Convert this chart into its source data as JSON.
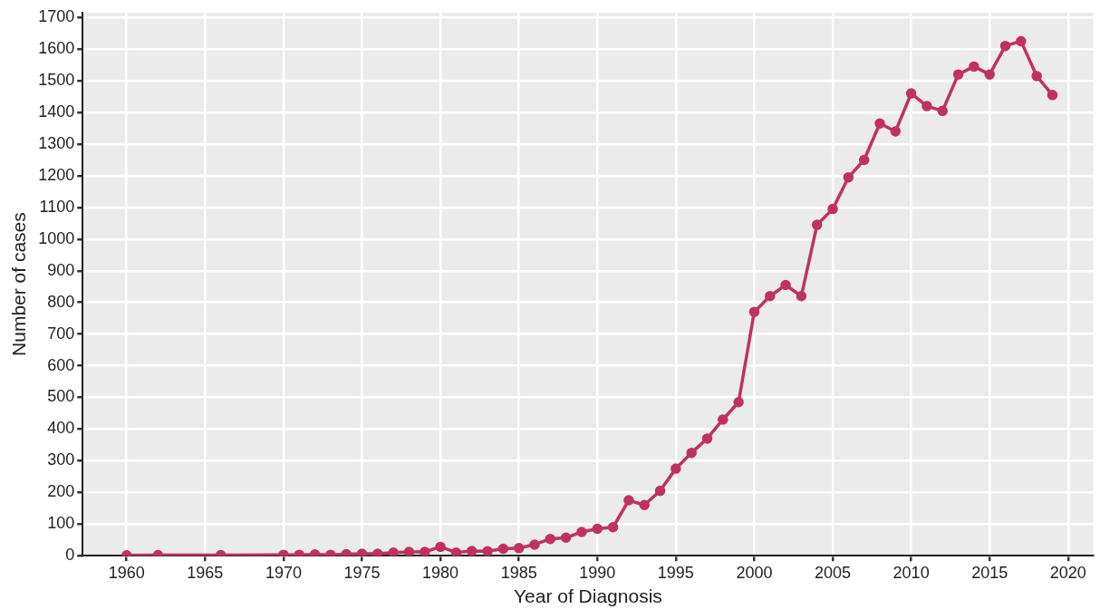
{
  "chart_data": {
    "type": "line",
    "xlabel": "Year of Diagnosis",
    "ylabel": "Number of cases",
    "x": [
      1960,
      1962,
      1966,
      1970,
      1971,
      1972,
      1973,
      1974,
      1975,
      1976,
      1977,
      1978,
      1979,
      1980,
      1981,
      1982,
      1983,
      1984,
      1985,
      1986,
      1987,
      1988,
      1989,
      1990,
      1991,
      1992,
      1993,
      1994,
      1995,
      1996,
      1997,
      1998,
      1999,
      2000,
      2001,
      2002,
      2003,
      2004,
      2005,
      2006,
      2007,
      2008,
      2009,
      2010,
      2011,
      2012,
      2013,
      2014,
      2015,
      2016,
      2017,
      2018,
      2019
    ],
    "series": [
      {
        "color": "#c0325e",
        "values": [
          1,
          2,
          2,
          3,
          3,
          4,
          3,
          5,
          6,
          6,
          10,
          12,
          12,
          28,
          10,
          15,
          14,
          22,
          24,
          35,
          53,
          57,
          75,
          85,
          90,
          175,
          160,
          205,
          275,
          325,
          370,
          430,
          485,
          770,
          820,
          855,
          820,
          1045,
          1095,
          1195,
          1250,
          1365,
          1340,
          1460,
          1420,
          1405,
          1520,
          1545,
          1520,
          1610,
          1625,
          1515,
          1455
        ]
      }
    ],
    "xlim": [
      1957.2,
      2021.6
    ],
    "xticks": [
      1960,
      1965,
      1970,
      1975,
      1980,
      1985,
      1990,
      1995,
      2000,
      2005,
      2010,
      2015,
      2020
    ],
    "ylim": [
      0,
      1715
    ],
    "yticks": [
      0,
      100,
      200,
      300,
      400,
      500,
      600,
      700,
      800,
      900,
      1000,
      1100,
      1200,
      1300,
      1400,
      1500,
      1600,
      1700
    ],
    "grid": true,
    "legend": false,
    "marker": "circle",
    "line_style": "solid"
  }
}
